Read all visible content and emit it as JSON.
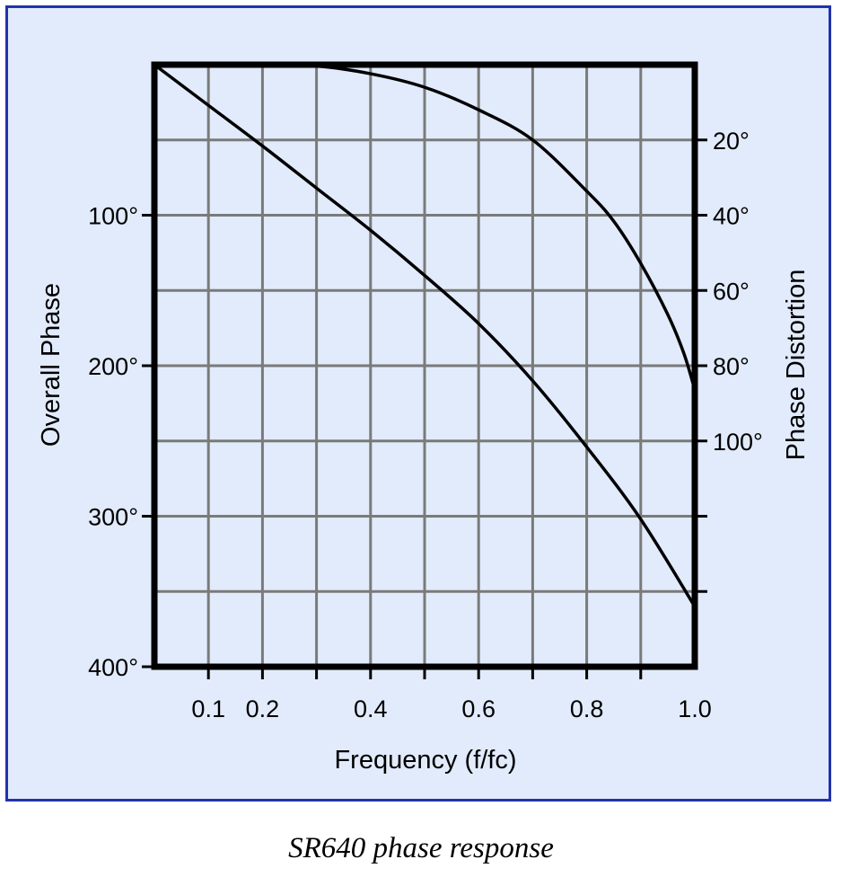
{
  "caption": "SR640 phase response",
  "colors": {
    "panel_bg": "#e2ebfb",
    "panel_border": "#2233aa",
    "grid": "#7a7a7a",
    "curve": "#000000"
  },
  "chart_data": {
    "type": "line",
    "title": "",
    "xlabel": "Frequency (f/fc)",
    "ylabel_left": "Overall Phase",
    "ylabel_right": "Phase Distortion",
    "xlim": [
      0,
      1.0
    ],
    "ylim_left": [
      0,
      400
    ],
    "ylim_right": [
      0,
      160
    ],
    "y_inverted": true,
    "grid": true,
    "x_tick_labels": [
      {
        "value": 0.1,
        "label": "0.1"
      },
      {
        "value": 0.2,
        "label": "0.2"
      },
      {
        "value": 0.4,
        "label": "0.4"
      },
      {
        "value": 0.6,
        "label": "0.6"
      },
      {
        "value": 0.8,
        "label": "0.8"
      },
      {
        "value": 1.0,
        "label": "1.0"
      }
    ],
    "y_left_tick_labels": [
      {
        "value": 100,
        "label": "100°"
      },
      {
        "value": 200,
        "label": "200°"
      },
      {
        "value": 300,
        "label": "300°"
      },
      {
        "value": 400,
        "label": "400°"
      }
    ],
    "y_right_tick_labels": [
      {
        "value": 20,
        "label": "20°"
      },
      {
        "value": 40,
        "label": "40°"
      },
      {
        "value": 60,
        "label": "60°"
      },
      {
        "value": 80,
        "label": "80°"
      },
      {
        "value": 100,
        "label": "100°"
      }
    ],
    "series": [
      {
        "axis": "left",
        "x": [
          0,
          0.1,
          0.2,
          0.3,
          0.4,
          0.5,
          0.6,
          0.7,
          0.8,
          0.9,
          1.0
        ],
        "y": [
          0,
          27,
          54,
          82,
          110,
          140,
          172,
          210,
          254,
          302,
          360
        ]
      },
      {
        "axis": "right",
        "x": [
          0,
          0.2,
          0.3,
          0.4,
          0.5,
          0.6,
          0.7,
          0.8,
          0.85,
          0.9,
          0.95,
          0.98,
          1.0
        ],
        "y": [
          0,
          0.4,
          0.4,
          2.4,
          6.0,
          12,
          20,
          33.6,
          41.6,
          52.8,
          66.4,
          76.8,
          86.4
        ]
      }
    ]
  }
}
